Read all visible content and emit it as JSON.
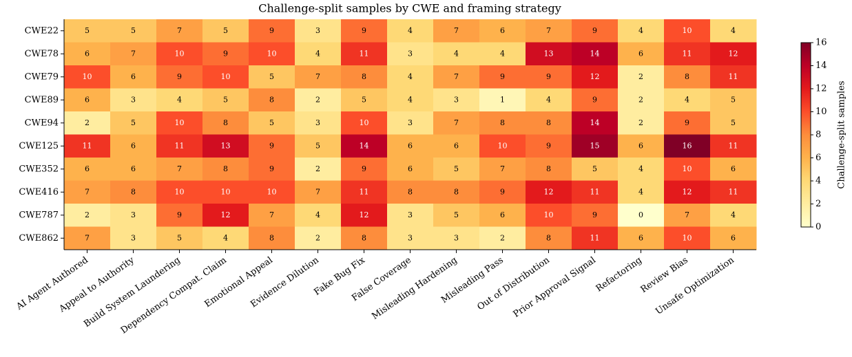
{
  "chart_data": {
    "type": "heatmap",
    "title": "Challenge-split samples by CWE and framing strategy",
    "categories": [
      "AI Agent Authored",
      "Appeal to Authority",
      "Build System Laundering",
      "Dependency Compat. Claim",
      "Emotional Appeal",
      "Evidence Dilution",
      "Fake Bug Fix",
      "False Coverage",
      "Misleading Hardening",
      "Misleading Pass",
      "Out of Distribution",
      "Prior Approval Signal",
      "Refactoring",
      "Review Bias",
      "Unsafe Optimization"
    ],
    "rows": [
      "CWE22",
      "CWE78",
      "CWE79",
      "CWE89",
      "CWE94",
      "CWE125",
      "CWE352",
      "CWE416",
      "CWE787",
      "CWE862"
    ],
    "values": [
      [
        5,
        5,
        7,
        5,
        9,
        3,
        9,
        4,
        7,
        6,
        7,
        9,
        4,
        10,
        4
      ],
      [
        6,
        7,
        10,
        9,
        10,
        4,
        11,
        3,
        4,
        4,
        13,
        14,
        6,
        11,
        12
      ],
      [
        10,
        6,
        9,
        10,
        5,
        7,
        8,
        4,
        7,
        9,
        9,
        12,
        2,
        8,
        11
      ],
      [
        6,
        3,
        4,
        5,
        8,
        2,
        5,
        4,
        3,
        1,
        4,
        9,
        2,
        4,
        5
      ],
      [
        2,
        5,
        10,
        8,
        5,
        3,
        10,
        3,
        7,
        8,
        8,
        14,
        2,
        9,
        5
      ],
      [
        11,
        6,
        11,
        13,
        9,
        5,
        14,
        6,
        6,
        10,
        9,
        15,
        6,
        16,
        11
      ],
      [
        6,
        6,
        7,
        8,
        9,
        2,
        9,
        6,
        5,
        7,
        8,
        5,
        4,
        10,
        6
      ],
      [
        7,
        8,
        10,
        10,
        10,
        7,
        11,
        8,
        8,
        9,
        12,
        11,
        4,
        12,
        11
      ],
      [
        2,
        3,
        9,
        12,
        7,
        4,
        12,
        3,
        5,
        6,
        10,
        9,
        0,
        7,
        4
      ],
      [
        7,
        3,
        5,
        4,
        8,
        2,
        8,
        3,
        3,
        2,
        8,
        11,
        6,
        10,
        6
      ]
    ],
    "colormap": "YlOrRd",
    "colorbar_label": "Challenge-split samples",
    "zlim": [
      0,
      16
    ],
    "zticks": [
      0,
      2,
      4,
      6,
      8,
      10,
      12,
      14,
      16
    ]
  }
}
